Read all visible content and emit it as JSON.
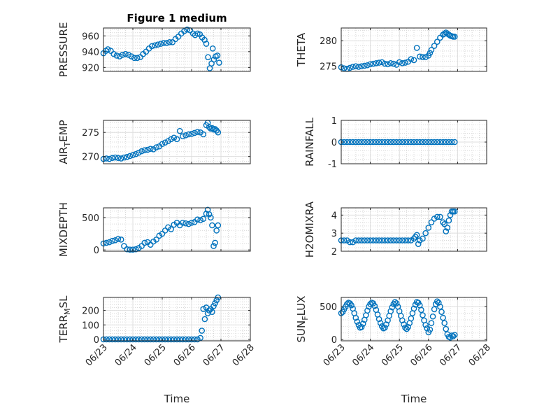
{
  "chart_data": [
    {
      "type": "scatter",
      "title": "Figure 1 medium",
      "ylabel": "PRESSURE",
      "xlabel": "",
      "xlim": [
        0,
        5
      ],
      "ylim": [
        915,
        970
      ],
      "yticks": [
        920,
        940,
        960
      ],
      "ytick_labels": [
        "920",
        "940",
        "960"
      ],
      "x_tick_labels": [],
      "x": [
        0.0,
        0.08,
        0.15,
        0.25,
        0.35,
        0.45,
        0.55,
        0.65,
        0.75,
        0.85,
        0.95,
        1.05,
        1.15,
        1.25,
        1.35,
        1.45,
        1.55,
        1.65,
        1.75,
        1.85,
        1.95,
        2.05,
        2.15,
        2.25,
        2.35,
        2.45,
        2.55,
        2.65,
        2.75,
        2.85,
        2.95,
        3.05,
        3.12,
        3.2,
        3.28,
        3.36,
        3.44,
        3.5,
        3.56,
        3.62,
        3.68,
        3.72,
        3.76,
        3.82,
        3.88,
        3.94
      ],
      "y": [
        938,
        941,
        943,
        941,
        937,
        935,
        934,
        936,
        937,
        936,
        934,
        932,
        932,
        933,
        937,
        940,
        944,
        947,
        948,
        949,
        950,
        951,
        951,
        952,
        952,
        956,
        959,
        963,
        966,
        968,
        967,
        963,
        961,
        963,
        962,
        958,
        955,
        950,
        933,
        919,
        925,
        944,
        930,
        934,
        935,
        926
      ]
    },
    {
      "type": "scatter",
      "ylabel": "THETA",
      "xlabel": "",
      "xlim": [
        0,
        5
      ],
      "ylim": [
        274,
        282.5
      ],
      "yticks": [
        275,
        280
      ],
      "ytick_labels": [
        "275",
        "280"
      ],
      "x_tick_labels": [],
      "x": [
        0.0,
        0.1,
        0.2,
        0.3,
        0.4,
        0.5,
        0.6,
        0.7,
        0.8,
        0.9,
        1.0,
        1.1,
        1.2,
        1.3,
        1.4,
        1.5,
        1.6,
        1.7,
        1.8,
        1.9,
        2.0,
        2.1,
        2.2,
        2.3,
        2.4,
        2.5,
        2.6,
        2.7,
        2.8,
        2.9,
        3.0,
        3.05,
        3.1,
        3.2,
        3.3,
        3.4,
        3.5,
        3.55,
        3.6,
        3.65,
        3.7,
        3.75,
        3.8,
        3.85,
        3.9
      ],
      "y": [
        274.8,
        274.6,
        274.5,
        274.7,
        274.9,
        275.0,
        274.9,
        275.0,
        275.1,
        275.2,
        275.4,
        275.5,
        275.6,
        275.7,
        275.8,
        275.5,
        275.4,
        275.6,
        275.5,
        275.3,
        275.8,
        275.6,
        275.7,
        275.9,
        276.4,
        276.2,
        278.6,
        276.9,
        276.8,
        276.8,
        277.1,
        277.6,
        278.2,
        279.0,
        279.8,
        280.6,
        281.2,
        281.4,
        281.6,
        281.4,
        281.2,
        281.0,
        280.9,
        280.8,
        280.8
      ]
    },
    {
      "type": "scatter",
      "ylabel": "AIR_TEMP",
      "ylabel_parts": [
        "AIR",
        "T",
        "EMP"
      ],
      "xlabel": "",
      "xlim": [
        0,
        5
      ],
      "ylim": [
        268.5,
        277.5
      ],
      "yticks": [
        270,
        275
      ],
      "ytick_labels": [
        "270",
        "275"
      ],
      "x_tick_labels": [],
      "x": [
        0.0,
        0.1,
        0.2,
        0.3,
        0.4,
        0.5,
        0.6,
        0.7,
        0.8,
        0.9,
        1.0,
        1.1,
        1.2,
        1.3,
        1.4,
        1.5,
        1.6,
        1.7,
        1.8,
        1.9,
        2.0,
        2.1,
        2.2,
        2.3,
        2.4,
        2.5,
        2.6,
        2.7,
        2.8,
        2.9,
        3.0,
        3.1,
        3.2,
        3.3,
        3.4,
        3.5,
        3.55,
        3.6,
        3.65,
        3.7,
        3.75,
        3.8,
        3.85,
        3.9
      ],
      "y": [
        269.5,
        269.6,
        269.5,
        269.7,
        269.8,
        269.7,
        269.6,
        269.8,
        269.9,
        270.1,
        270.3,
        270.5,
        270.8,
        271.1,
        271.3,
        271.4,
        271.6,
        271.5,
        271.9,
        272.1,
        272.6,
        272.9,
        273.2,
        273.6,
        273.9,
        273.6,
        275.3,
        274.2,
        274.4,
        274.6,
        274.7,
        274.9,
        275.1,
        275.0,
        274.6,
        276.5,
        277.0,
        276.1,
        275.8,
        275.9,
        275.6,
        275.7,
        275.4,
        275.0
      ]
    },
    {
      "type": "scatter",
      "ylabel": "RAINFALL",
      "xlabel": "",
      "xlim": [
        0,
        5
      ],
      "ylim": [
        -1,
        1
      ],
      "yticks": [
        -1,
        0,
        1
      ],
      "ytick_labels": [
        "-1",
        "0",
        "1"
      ],
      "x_tick_labels": [],
      "x": [
        0.0,
        0.1,
        0.2,
        0.3,
        0.4,
        0.5,
        0.6,
        0.7,
        0.8,
        0.9,
        1.0,
        1.1,
        1.2,
        1.3,
        1.4,
        1.5,
        1.6,
        1.7,
        1.8,
        1.9,
        2.0,
        2.1,
        2.2,
        2.3,
        2.4,
        2.5,
        2.6,
        2.7,
        2.8,
        2.9,
        3.0,
        3.1,
        3.2,
        3.3,
        3.4,
        3.5,
        3.6,
        3.7,
        3.8,
        3.9
      ],
      "y": [
        0,
        0,
        0,
        0,
        0,
        0,
        0,
        0,
        0,
        0,
        0,
        0,
        0,
        0,
        0,
        0,
        0,
        0,
        0,
        0,
        0,
        0,
        0,
        0,
        0,
        0,
        0,
        0,
        0,
        0,
        0,
        0,
        0,
        0,
        0,
        0,
        0,
        0,
        0,
        0
      ]
    },
    {
      "type": "scatter",
      "ylabel": "MIXDEPTH",
      "xlabel": "",
      "xlim": [
        0,
        5
      ],
      "ylim": [
        -20,
        650
      ],
      "yticks": [
        0,
        500
      ],
      "ytick_labels": [
        "0",
        "500"
      ],
      "x_tick_labels": [],
      "x": [
        0.0,
        0.1,
        0.2,
        0.3,
        0.4,
        0.5,
        0.6,
        0.7,
        0.8,
        0.9,
        1.0,
        1.1,
        1.2,
        1.3,
        1.4,
        1.5,
        1.6,
        1.7,
        1.8,
        1.9,
        2.0,
        2.1,
        2.2,
        2.3,
        2.4,
        2.5,
        2.6,
        2.7,
        2.8,
        2.9,
        3.0,
        3.1,
        3.2,
        3.3,
        3.4,
        3.5,
        3.55,
        3.6,
        3.65,
        3.7,
        3.75,
        3.8,
        3.85,
        3.9
      ],
      "y": [
        100,
        110,
        120,
        140,
        150,
        170,
        160,
        60,
        10,
        5,
        5,
        10,
        30,
        60,
        110,
        120,
        80,
        130,
        160,
        220,
        250,
        300,
        350,
        320,
        390,
        420,
        380,
        420,
        410,
        400,
        420,
        430,
        470,
        460,
        480,
        560,
        620,
        550,
        500,
        380,
        60,
        110,
        300,
        380
      ]
    },
    {
      "type": "scatter",
      "ylabel": "H2OMIXRA",
      "xlabel": "",
      "xlim": [
        0,
        5
      ],
      "ylim": [
        2,
        4.4
      ],
      "yticks": [
        2,
        3,
        4
      ],
      "ytick_labels": [
        "2",
        "3",
        "4"
      ],
      "x_tick_labels": [],
      "x": [
        0.0,
        0.1,
        0.2,
        0.3,
        0.4,
        0.5,
        0.6,
        0.7,
        0.8,
        0.9,
        1.0,
        1.1,
        1.2,
        1.3,
        1.4,
        1.5,
        1.6,
        1.7,
        1.8,
        1.9,
        2.0,
        2.1,
        2.2,
        2.3,
        2.4,
        2.5,
        2.55,
        2.6,
        2.65,
        2.7,
        2.8,
        2.9,
        3.0,
        3.1,
        3.2,
        3.3,
        3.4,
        3.5,
        3.55,
        3.6,
        3.65,
        3.7,
        3.75,
        3.8,
        3.85,
        3.9
      ],
      "y": [
        2.6,
        2.6,
        2.6,
        2.5,
        2.5,
        2.6,
        2.6,
        2.6,
        2.6,
        2.6,
        2.6,
        2.6,
        2.6,
        2.6,
        2.6,
        2.6,
        2.6,
        2.6,
        2.6,
        2.6,
        2.6,
        2.6,
        2.6,
        2.6,
        2.6,
        2.7,
        2.8,
        2.9,
        2.4,
        2.6,
        2.7,
        3.0,
        3.3,
        3.6,
        3.8,
        3.9,
        3.9,
        3.6,
        3.5,
        3.1,
        3.3,
        3.7,
        4.0,
        4.2,
        4.2,
        4.2
      ]
    },
    {
      "type": "scatter",
      "ylabel": "TERR_MSL",
      "ylabel_parts": [
        "TERR",
        "M",
        "SL"
      ],
      "xlabel": "Time",
      "xlim": [
        0,
        5
      ],
      "ylim": [
        -10,
        290
      ],
      "yticks": [
        0,
        100,
        200
      ],
      "ytick_labels": [
        "0",
        "100",
        "200"
      ],
      "x_ticks": [
        0,
        1,
        2,
        3,
        4,
        5
      ],
      "x_tick_labels": [
        "06/23",
        "06/24",
        "06/25",
        "06/26",
        "06/27",
        "06/28"
      ],
      "x": [
        0.0,
        0.1,
        0.2,
        0.3,
        0.4,
        0.5,
        0.6,
        0.7,
        0.8,
        0.9,
        1.0,
        1.1,
        1.2,
        1.3,
        1.4,
        1.5,
        1.6,
        1.7,
        1.8,
        1.9,
        2.0,
        2.1,
        2.2,
        2.3,
        2.4,
        2.5,
        2.6,
        2.7,
        2.8,
        2.9,
        3.0,
        3.1,
        3.2,
        3.3,
        3.35,
        3.4,
        3.45,
        3.5,
        3.55,
        3.6,
        3.65,
        3.7,
        3.75,
        3.8,
        3.85,
        3.9
      ],
      "y": [
        0,
        0,
        0,
        0,
        0,
        0,
        0,
        0,
        0,
        0,
        0,
        0,
        0,
        0,
        0,
        0,
        0,
        0,
        0,
        0,
        0,
        0,
        0,
        0,
        0,
        0,
        0,
        0,
        0,
        0,
        0,
        0,
        0,
        10,
        60,
        210,
        140,
        220,
        180,
        200,
        210,
        190,
        230,
        250,
        270,
        290
      ]
    },
    {
      "type": "scatter",
      "ylabel": "SUN_FLUX",
      "ylabel_parts": [
        "SUN",
        "F",
        "LUX"
      ],
      "xlabel": "Time",
      "xlim": [
        0,
        5
      ],
      "ylim": [
        -20,
        640
      ],
      "yticks": [
        0,
        500
      ],
      "ytick_labels": [
        "0",
        "500"
      ],
      "x_ticks": [
        0,
        1,
        2,
        3,
        4,
        5
      ],
      "x_tick_labels": [
        "06/23",
        "06/24",
        "06/25",
        "06/26",
        "06/27",
        "06/28"
      ],
      "x": [
        0.0,
        0.05,
        0.1,
        0.15,
        0.2,
        0.25,
        0.3,
        0.35,
        0.4,
        0.45,
        0.5,
        0.55,
        0.6,
        0.65,
        0.7,
        0.75,
        0.8,
        0.85,
        0.9,
        0.95,
        1.0,
        1.05,
        1.1,
        1.15,
        1.2,
        1.25,
        1.3,
        1.35,
        1.4,
        1.45,
        1.5,
        1.55,
        1.6,
        1.65,
        1.7,
        1.75,
        1.8,
        1.85,
        1.9,
        1.95,
        2.0,
        2.05,
        2.1,
        2.15,
        2.2,
        2.25,
        2.3,
        2.35,
        2.4,
        2.45,
        2.5,
        2.55,
        2.6,
        2.65,
        2.7,
        2.75,
        2.8,
        2.85,
        2.9,
        2.95,
        3.0,
        3.05,
        3.1,
        3.15,
        3.2,
        3.25,
        3.3,
        3.35,
        3.4,
        3.45,
        3.5,
        3.55,
        3.6,
        3.65,
        3.7,
        3.75,
        3.8,
        3.85,
        3.9
      ],
      "y": [
        400,
        420,
        460,
        500,
        540,
        560,
        550,
        520,
        470,
        400,
        330,
        270,
        220,
        180,
        190,
        240,
        300,
        370,
        440,
        500,
        540,
        560,
        550,
        510,
        450,
        380,
        310,
        250,
        200,
        170,
        180,
        230,
        290,
        360,
        430,
        490,
        540,
        570,
        550,
        500,
        430,
        360,
        290,
        230,
        180,
        160,
        190,
        250,
        320,
        400,
        470,
        530,
        570,
        560,
        520,
        450,
        370,
        290,
        220,
        170,
        110,
        150,
        250,
        350,
        460,
        540,
        580,
        560,
        500,
        420,
        330,
        250,
        160,
        80,
        40,
        30,
        60,
        50,
        70
      ]
    }
  ]
}
